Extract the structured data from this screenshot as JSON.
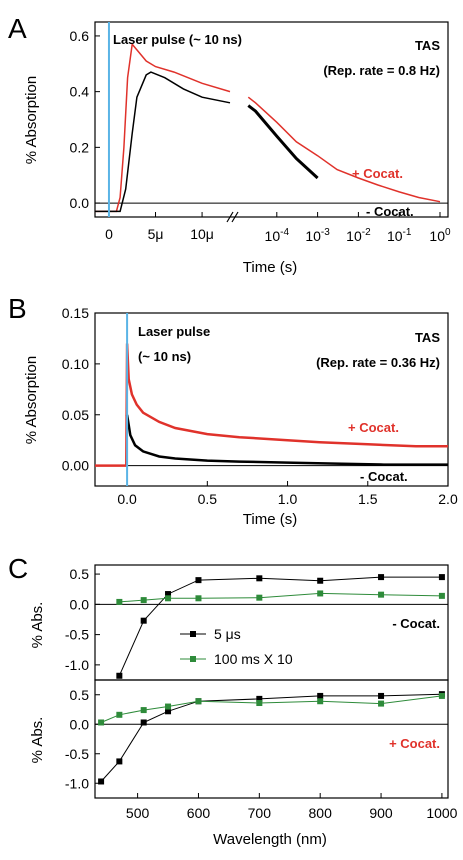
{
  "colors": {
    "red": "#e0322b",
    "black": "#000000",
    "green": "#2e8b3a",
    "laser": "#5ab4e6"
  },
  "chart_data": [
    {
      "panel": "A",
      "type": "line",
      "ylabel": "% Absorption",
      "xlabel": "Time (s)",
      "ylim": [
        -0.05,
        0.65
      ],
      "yticks": [
        "0.0",
        "0.2",
        "0.4",
        "0.6"
      ],
      "x_axis_break": true,
      "x_linear_segment": {
        "range_s": [
          -1.5e-06,
          1.3e-05
        ],
        "tick_labels": [
          "0",
          "5μ",
          "10μ"
        ]
      },
      "x_log_segment": {
        "range_s": [
          1e-05,
          1
        ],
        "tick_labels": [
          "10^-4",
          "10^-3",
          "10^-2",
          "10^-1",
          "10^0"
        ]
      },
      "annotations": [
        "Laser pulse (~ 10 ns)",
        "TAS",
        "(Rep. rate = 0.8 Hz)",
        "+ Cocat.",
        "- Cocat."
      ],
      "series": [
        {
          "name": "+ Cocat.",
          "color": "#e0322b",
          "linear_points": [
            [
              -1.5e-06,
              -0.03
            ],
            [
              0,
              -0.03
            ],
            [
              8e-07,
              -0.03
            ],
            [
              1.2e-06,
              0.02
            ],
            [
              1.6e-06,
              0.2
            ],
            [
              2e-06,
              0.45
            ],
            [
              2.5e-06,
              0.57
            ],
            [
              3e-06,
              0.55
            ],
            [
              4e-06,
              0.51
            ],
            [
              5e-06,
              0.49
            ],
            [
              7e-06,
              0.47
            ],
            [
              1e-05,
              0.43
            ],
            [
              1.3e-05,
              0.4
            ]
          ],
          "log_points": [
            [
              2e-05,
              0.38
            ],
            [
              3e-05,
              0.36
            ],
            [
              0.0001,
              0.29
            ],
            [
              0.0003,
              0.22
            ],
            [
              0.001,
              0.17
            ],
            [
              0.003,
              0.12
            ],
            [
              0.01,
              0.09
            ],
            [
              0.03,
              0.065
            ],
            [
              0.1,
              0.04
            ],
            [
              0.3,
              0.02
            ],
            [
              1,
              0.005
            ]
          ]
        },
        {
          "name": "- Cocat.",
          "color": "#000000",
          "linear_points": [
            [
              -1.5e-06,
              -0.03
            ],
            [
              0,
              -0.03
            ],
            [
              1.2e-06,
              -0.03
            ],
            [
              1.8e-06,
              0.05
            ],
            [
              2.5e-06,
              0.25
            ],
            [
              3e-06,
              0.38
            ],
            [
              4e-06,
              0.46
            ],
            [
              4.5e-06,
              0.47
            ],
            [
              6e-06,
              0.45
            ],
            [
              8e-06,
              0.41
            ],
            [
              1e-05,
              0.38
            ],
            [
              1.3e-05,
              0.36
            ]
          ],
          "log_points": [
            [
              2e-05,
              0.35
            ],
            [
              3e-05,
              0.33
            ],
            [
              0.0001,
              0.24
            ],
            [
              0.0003,
              0.16
            ],
            [
              0.001,
              0.09
            ]
          ]
        }
      ]
    },
    {
      "panel": "B",
      "type": "line",
      "ylabel": "% Absorption",
      "xlabel": "Time (s)",
      "xlim": [
        -0.2,
        2.0
      ],
      "ylim": [
        -0.02,
        0.15
      ],
      "xticks": [
        "0.0",
        "0.5",
        "1.0",
        "1.5",
        "2.0"
      ],
      "yticks": [
        "0.00",
        "0.05",
        "0.10",
        "0.15"
      ],
      "annotations": [
        "Laser pulse",
        "(~ 10 ns)",
        "TAS",
        "(Rep. rate = 0.36 Hz)",
        "+ Cocat.",
        "- Cocat."
      ],
      "series": [
        {
          "name": "+ Cocat.",
          "color": "#e0322b",
          "points": [
            [
              -0.2,
              0.0
            ],
            [
              -0.005,
              0.0
            ],
            [
              0.0,
              0.12
            ],
            [
              0.01,
              0.085
            ],
            [
              0.03,
              0.07
            ],
            [
              0.06,
              0.06
            ],
            [
              0.1,
              0.052
            ],
            [
              0.2,
              0.043
            ],
            [
              0.3,
              0.037
            ],
            [
              0.5,
              0.031
            ],
            [
              0.7,
              0.028
            ],
            [
              1.0,
              0.025
            ],
            [
              1.2,
              0.023
            ],
            [
              1.5,
              0.021
            ],
            [
              1.8,
              0.019
            ],
            [
              2.0,
              0.019
            ]
          ]
        },
        {
          "name": "- Cocat.",
          "color": "#000000",
          "points": [
            [
              0.0,
              0.05
            ],
            [
              0.02,
              0.03
            ],
            [
              0.05,
              0.02
            ],
            [
              0.1,
              0.014
            ],
            [
              0.2,
              0.009
            ],
            [
              0.3,
              0.007
            ],
            [
              0.5,
              0.005
            ],
            [
              0.7,
              0.004
            ],
            [
              1.0,
              0.003
            ],
            [
              1.3,
              0.002
            ],
            [
              1.6,
              0.001
            ],
            [
              2.0,
              0.001
            ]
          ]
        }
      ]
    },
    {
      "panel": "C",
      "type": "line",
      "ylabel": "% Abs.",
      "xlabel": "Wavelength (nm)",
      "xlim": [
        430,
        1010
      ],
      "xticks": [
        "500",
        "600",
        "700",
        "800",
        "900",
        "1000"
      ],
      "legend": [
        "5 μs",
        "100 ms X 10"
      ],
      "subplots": [
        {
          "label": "- Cocat.",
          "ylim": [
            -1.25,
            0.65
          ],
          "yticks": [
            "0.5",
            "0.0",
            "-0.5",
            "-1.0"
          ],
          "series": [
            {
              "name": "5 μs",
              "color": "#000000",
              "points": [
                [
                  470,
                  -1.18
                ],
                [
                  510,
                  -0.27
                ],
                [
                  550,
                  0.17
                ],
                [
                  600,
                  0.4
                ],
                [
                  700,
                  0.43
                ],
                [
                  800,
                  0.39
                ],
                [
                  900,
                  0.45
                ],
                [
                  1000,
                  0.45
                ]
              ]
            },
            {
              "name": "100 ms X 10",
              "color": "#2e8b3a",
              "points": [
                [
                  470,
                  0.04
                ],
                [
                  510,
                  0.07
                ],
                [
                  550,
                  0.1
                ],
                [
                  600,
                  0.1
                ],
                [
                  700,
                  0.11
                ],
                [
                  800,
                  0.18
                ],
                [
                  900,
                  0.16
                ],
                [
                  1000,
                  0.14
                ]
              ]
            }
          ]
        },
        {
          "label": "+ Cocat.",
          "ylim": [
            -1.25,
            0.75
          ],
          "yticks": [
            "0.5",
            "0.0",
            "-0.5",
            "-1.0"
          ],
          "series": [
            {
              "name": "5 μs",
              "color": "#000000",
              "points": [
                [
                  440,
                  -0.97
                ],
                [
                  470,
                  -0.63
                ],
                [
                  510,
                  0.03
                ],
                [
                  550,
                  0.22
                ],
                [
                  600,
                  0.39
                ],
                [
                  700,
                  0.43
                ],
                [
                  800,
                  0.48
                ],
                [
                  900,
                  0.48
                ],
                [
                  1000,
                  0.51
                ]
              ]
            },
            {
              "name": "100 ms X 10",
              "color": "#2e8b3a",
              "points": [
                [
                  440,
                  0.03
                ],
                [
                  470,
                  0.16
                ],
                [
                  510,
                  0.24
                ],
                [
                  550,
                  0.3
                ],
                [
                  600,
                  0.39
                ],
                [
                  700,
                  0.36
                ],
                [
                  800,
                  0.39
                ],
                [
                  900,
                  0.35
                ],
                [
                  1000,
                  0.48
                ]
              ]
            }
          ]
        }
      ]
    }
  ]
}
